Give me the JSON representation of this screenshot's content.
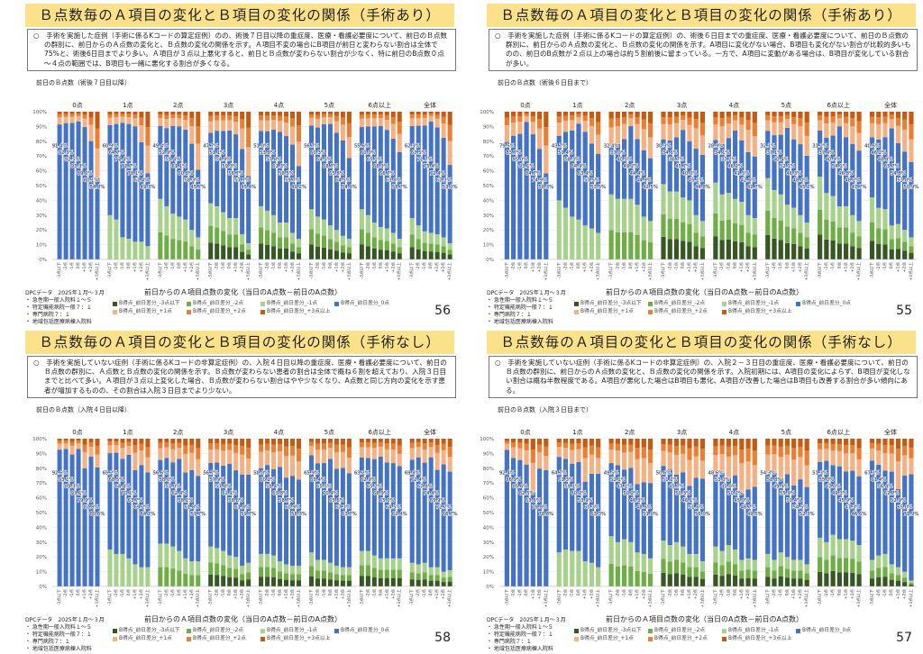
{
  "common": {
    "groups": [
      "0点",
      "1点",
      "2点",
      "3点",
      "4点",
      "5点",
      "6点以上",
      "全体"
    ],
    "xcats": [
      "-3点以下",
      "-2点",
      "-1点",
      "0点",
      "+1点",
      "+2点",
      "+3点以上"
    ],
    "yticks": [
      "0%",
      "10%",
      "20%",
      "30%",
      "40%",
      "50%",
      "60%",
      "70%",
      "80%",
      "90%",
      "100%"
    ],
    "xlabel": "前日からのＡ項目点数の変化（当日のA点数－前日のA点数）",
    "source": "DPCデータ　2025年１月～３月",
    "notes": [
      "急性期一般入院料１～５",
      "特定機能病院一般７：１",
      "専門病院７：１",
      "地域包括医療病棟入院料"
    ],
    "legend": [
      "B得点_前日差分_-3点以下",
      "B得点_前日差分_-2点",
      "B得点_前日差分_-1点",
      "B得点_前日差分_0点",
      "B得点_前日差分_+1点",
      "B得点_前日差分_+2点",
      "B得点_前日差分_+3点以上"
    ],
    "colors": [
      "#375623",
      "#70ad47",
      "#a9d18e",
      "#4472c4",
      "#f4b183",
      "#ed7d31",
      "#c55a11"
    ]
  },
  "slides": [
    {
      "title": "Ｂ点数毎のＡ項目の変化とＢ項目の変化の関係（手術あり）",
      "desc": "○　手術を実施した症例（手術に係るKコードの算定症例）のの、術後７日目以降の重症度、医療・看護必要度について、前日のＢ点数の群別に、前日からのＡ点数の変化と、Ｂ点数の変化の関係を示す。Ａ項目不変の場合にB項目が前日と変わらない割合は全体で75%と、術後6日目までより多い。Ａ項目が３点以上悪化すると、前日とＢ点数が変わらない割合が少なく、特に前日のB点数０点～４点の範囲では、B項目も一緒に悪化する割合が多くなる。",
      "header": "前日のＢ点数（術後７日目以降）",
      "page": "56"
    },
    {
      "title": "Ｂ点数毎のＡ項目の変化とＢ項目の変化の関係（手術あり）",
      "desc": "○　手術を実施した症例（手術に係るKコードの算定症例）の、術後６日目までの重症度、医療・看護必要度について、前日のＢ点数の群別に、前日からのＡ点数の変化と、Ｂ点数の変化の関係を示す。A項目に変化がない場合、B項目も変化がない割合が比較的多いものの、前日のB点数が２点以上の場合は約５割前後に留まっている。一方で、A項目に変動がある場合は、B項目が変化している割合が多い。",
      "header": "前日のＢ点数（術後６日目まで）",
      "page": "55"
    },
    {
      "title": "Ｂ点数毎のＡ項目の変化とＢ項目の変化の関係（手術なし）",
      "desc": "○　手術を実施していない症例（手術に係るKコードの非算定症例）の、入院４日目以降の重症度、医療・看護必要度について、前日のＢ点数の群別に、Ａ点数とＢ点数の変化の関係を示す。Ｂ点数が変わらない患者の割合は全体で概ね６割を超えており、入院３日目までと比べて多い。Ａ項目が３点以上変化した場合、Ｂ点数が変わらない割合はやや少なくなり、A点数と同じ方向の変化を示す患者が増加するものの、その割合は入院３日目までより少ない。",
      "header": "前日のＢ点数（入院４日目以降）",
      "page": "58"
    },
    {
      "title": "Ｂ点数毎のＡ項目の変化とＢ項目の変化の関係（手術なし）",
      "desc": "○　手術を実施していない症例（手術に係るKコードの非算定症例）の、入院２－３日目の重症度、医療・看護必要度について、前日のＢ点数の群別に、前日からのＡ点数の変化と、Ｂ点数の変化の関係を示す。入院初期には、A項目の変化によらず、B項目が変化しない割合は概ね半数程度である。A項目が悪化した場合はB項目も悪化、A項目が改善した場合はB項目も改善する割合が多い傾向にある。",
      "header": "前日のＢ点数（入院３日目まで）",
      "page": "57"
    }
  ],
  "chart_data": [
    {
      "type": "bar",
      "stacked": true,
      "ylim": [
        0,
        100
      ],
      "note": "per bar: green = share with B decreased (sum of -3/-2/-1), blue = share with B unchanged (labeled), orange = remainder",
      "blue": [
        [
          91.4,
          92.3,
          92.5,
          93.3,
          89.6,
          80.1,
          54.8
        ],
        [
          60.9,
          64.7,
          77.4,
          77.7,
          78.1,
          67.4,
          49.3
        ],
        [
          49.4,
          52.9,
          59.4,
          61.1,
          60.8,
          58.3,
          45.7
        ],
        [
          47.7,
          51.1,
          54.9,
          59.3,
          56.7,
          57.7,
          45.4
        ],
        [
          51.0,
          53.8,
          57.8,
          61.3,
          58.5,
          59.7,
          49.2
        ],
        [
          56.7,
          60.3,
          64.5,
          68.7,
          65.8,
          64.5,
          54.6
        ],
        [
          55.6,
          60.0,
          65.1,
          68.3,
          66.7,
          63.8,
          58.7
        ],
        [
          62.3,
          67.5,
          71.7,
          75.4,
          72.4,
          67.3,
          53.0
        ]
      ],
      "green": [
        [
          0,
          0,
          0,
          0,
          0,
          0,
          0
        ],
        [
          30,
          27,
          15,
          14,
          12,
          12,
          9
        ],
        [
          41,
          36,
          31,
          29,
          27,
          20,
          15
        ],
        [
          38,
          36,
          32,
          28,
          28,
          17,
          11
        ],
        [
          36,
          33,
          30,
          25,
          25,
          18,
          14
        ],
        [
          34,
          29,
          27,
          23,
          20,
          16,
          14
        ],
        [
          34,
          30,
          25,
          22,
          21,
          18,
          14
        ],
        [
          28,
          23,
          19,
          18,
          17,
          15,
          11
        ]
      ]
    },
    {
      "type": "bar",
      "stacked": true,
      "ylim": [
        0,
        100
      ],
      "blue": [
        [
          79.5,
          83.7,
          85.0,
          93.1,
          84.7,
          74.9,
          58.3
        ],
        [
          43.7,
          51.4,
          58.3,
          64.9,
          63.4,
          57.5,
          53.5
        ],
        [
          32.4,
          37.0,
          40.5,
          49.2,
          44.4,
          44.9,
          42.5
        ],
        [
          30.3,
          34.6,
          36.7,
          45.7,
          40.0,
          45.1,
          44.8
        ],
        [
          28.9,
          34.1,
          37.2,
          46.2,
          41.5,
          42.6,
          41.7
        ],
        [
          32.1,
          37.1,
          40.4,
          52.1,
          46.3,
          48.0,
          45.2
        ],
        [
          31.2,
          37.4,
          40.9,
          54.1,
          46.8,
          48.2,
          47.7
        ],
        [
          40.6,
          46.2,
          48.8,
          65.7,
          54.8,
          53.0,
          50.9
        ]
      ],
      "green": [
        [
          0,
          0,
          0,
          0,
          0,
          0,
          0
        ],
        [
          40,
          35,
          29,
          27,
          23,
          21,
          18
        ],
        [
          44,
          41,
          41,
          41,
          37,
          29,
          26
        ],
        [
          51,
          46,
          46,
          42,
          40,
          30,
          26
        ],
        [
          52,
          44,
          45,
          41,
          39,
          30,
          28
        ],
        [
          55,
          47,
          44,
          37,
          35,
          30,
          25
        ],
        [
          56,
          45,
          43,
          36,
          36,
          30,
          26
        ],
        [
          42,
          35,
          34,
          23,
          24,
          20,
          15
        ]
      ]
    },
    {
      "type": "bar",
      "stacked": true,
      "ylim": [
        0,
        100
      ],
      "blue": [
        [
          92.6,
          93.1,
          89.3,
          93.1,
          79.9,
          87.8,
          80.6
        ],
        [
          65.2,
          68.5,
          64.4,
          70.1,
          63.7,
          69.2,
          64.2
        ],
        [
          56.6,
          58.0,
          57.0,
          62.4,
          58.1,
          61.8,
          57.7
        ],
        [
          56.7,
          57.9,
          57.8,
          62.1,
          58.6,
          61.8,
          59.7
        ],
        [
          58.0,
          60.2,
          58.4,
          63.8,
          58.7,
          60.9,
          58.3
        ],
        [
          65.9,
          65.4,
          65.5,
          70.4,
          65.6,
          67.3,
          63.7
        ],
        [
          63.2,
          62.9,
          65.2,
          68.9,
          65.0,
          64.5,
          62.4
        ],
        [
          69.8,
          72.4,
          67.8,
          74.4,
          65.9,
          72.7,
          66.7
        ]
      ],
      "green": [
        [
          0,
          0,
          0,
          0,
          0,
          0,
          0
        ],
        [
          25,
          22,
          22,
          19,
          15,
          13,
          13
        ],
        [
          29,
          29,
          27,
          24,
          19,
          17,
          17
        ],
        [
          27,
          26,
          24,
          21,
          20,
          14,
          16
        ],
        [
          22,
          22,
          21,
          17,
          15,
          14,
          14
        ],
        [
          23,
          18,
          18,
          16,
          14,
          13,
          13
        ],
        [
          24,
          24,
          21,
          19,
          19,
          19,
          19
        ],
        [
          16,
          15,
          16,
          13,
          13,
          10,
          11
        ]
      ]
    },
    {
      "type": "bar",
      "stacked": true,
      "ylim": [
        0,
        100
      ],
      "blue": [
        [
          92.4,
          86.9,
          85.6,
          82.5,
          63.6,
          79.8,
          78.8
        ],
        [
          64.7,
          61.3,
          59.1,
          60.2,
          53.9,
          60.3,
          63.3
        ],
        [
          49.5,
          52.1,
          47.1,
          50.2,
          46.3,
          48.6,
          51.0
        ],
        [
          50.6,
          51.2,
          45.7,
          50.3,
          46.1,
          51.6,
          56.0
        ],
        [
          48.6,
          53.0,
          45.0,
          50.2,
          45.0,
          46.7,
          49.5
        ],
        [
          54.3,
          58.8,
          49.9,
          55.9,
          50.4,
          54.5,
          52.3
        ],
        [
          51.3,
          55.0,
          47.0,
          49.3,
          45.9,
          47.3,
          46.6
        ],
        [
          67.1,
          61.4,
          56.4,
          62.7,
          52.9,
          65.0,
          71.9
        ]
      ],
      "green": [
        [
          0,
          0,
          0,
          0,
          0,
          0,
          0
        ],
        [
          23,
          25,
          24,
          24,
          17,
          16,
          13
        ],
        [
          34,
          30,
          32,
          30,
          23,
          22,
          19
        ],
        [
          31,
          28,
          30,
          27,
          22,
          22,
          17
        ],
        [
          27,
          24,
          28,
          25,
          18,
          19,
          18
        ],
        [
          22,
          18,
          23,
          20,
          18,
          18,
          15
        ],
        [
          33,
          30,
          35,
          32,
          32,
          31,
          28
        ],
        [
          18,
          21,
          22,
          15,
          13,
          10,
          4
        ]
      ]
    }
  ]
}
